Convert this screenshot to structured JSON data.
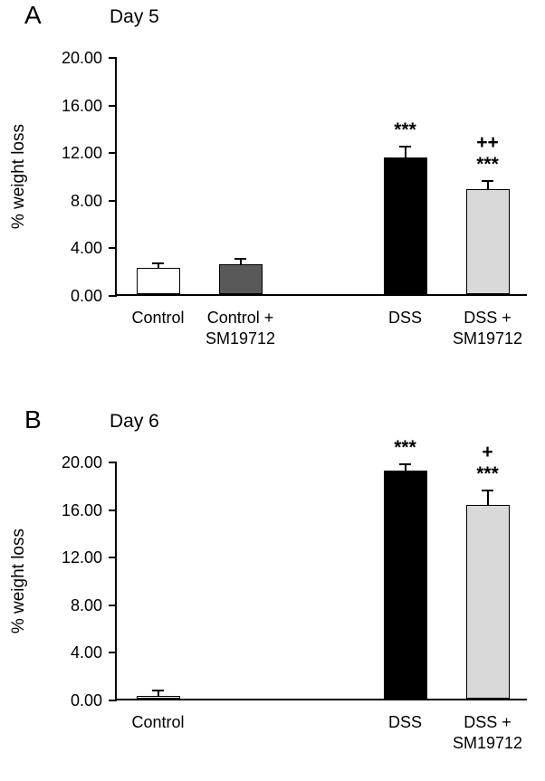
{
  "figure": {
    "background": "#ffffff"
  },
  "chart_data": [
    {
      "type": "bar",
      "panel_label": "A",
      "title": "Day 5",
      "ylabel": "% weight loss",
      "ylim": [
        0,
        20
      ],
      "yticks": [
        0,
        4,
        8,
        12,
        16,
        20
      ],
      "ytick_decimals": 2,
      "n_slots": 5,
      "grid": false,
      "legend": null,
      "bars": [
        {
          "category": "Control",
          "slot": 0,
          "value": 2.2,
          "error": 0.5,
          "color": "#ffffff",
          "annotations": []
        },
        {
          "category": "Control +\nSM19712",
          "slot": 1,
          "value": 2.5,
          "error": 0.55,
          "color": "#595959",
          "annotations": []
        },
        {
          "category": "DSS",
          "slot": 3,
          "value": 11.5,
          "error": 1.0,
          "color": "#000000",
          "annotations": [
            "***"
          ]
        },
        {
          "category": "DSS +\nSM19712",
          "slot": 4,
          "value": 8.8,
          "error": 0.8,
          "color": "#d9d9d9",
          "annotations": [
            "++",
            "***"
          ]
        }
      ]
    },
    {
      "type": "bar",
      "panel_label": "B",
      "title": "Day 6",
      "ylabel": "% weight loss",
      "ylim": [
        0,
        20
      ],
      "yticks": [
        0,
        4,
        8,
        12,
        16,
        20
      ],
      "ytick_decimals": 2,
      "n_slots": 5,
      "grid": false,
      "legend": null,
      "bars": [
        {
          "category": "Control",
          "slot": 0,
          "value": 0.25,
          "error": 0.55,
          "color": "#ffffff",
          "annotations": []
        },
        {
          "category": "DSS",
          "slot": 3,
          "value": 19.2,
          "error": 0.6,
          "color": "#000000",
          "annotations": [
            "***"
          ]
        },
        {
          "category": "DSS +\nSM19712",
          "slot": 4,
          "value": 16.3,
          "error": 1.3,
          "color": "#d9d9d9",
          "annotations": [
            "+",
            "***"
          ]
        }
      ]
    }
  ]
}
